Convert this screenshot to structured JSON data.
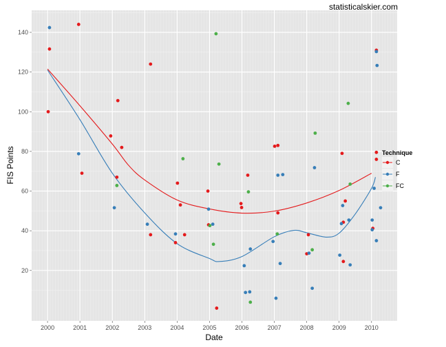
{
  "chart_data": {
    "type": "scatter",
    "title": "",
    "watermark": "statisticalskier.com",
    "xlabel": "Date",
    "ylabel": "FIS Points",
    "xlim": [
      1999.51,
      2010.79
    ],
    "ylim": [
      -5.4,
      151.1
    ],
    "xticks": [
      2000,
      2001,
      2002,
      2003,
      2004,
      2005,
      2006,
      2007,
      2008,
      2009,
      2010
    ],
    "xtick_labels": [
      "2000",
      "2001",
      "2002",
      "2003",
      "2004",
      "2005",
      "2006",
      "2007",
      "2008",
      "2009",
      "2010"
    ],
    "yticks": [
      20,
      40,
      60,
      80,
      100,
      120,
      140
    ],
    "ytick_labels": [
      "20",
      "40",
      "60",
      "80",
      "100",
      "120",
      "140"
    ],
    "grid": true,
    "legend": {
      "title": "Technique",
      "placement": "right"
    },
    "series": [
      {
        "name": "C",
        "color": "#E41A1C",
        "points": [
          [
            2000.02,
            100
          ],
          [
            2000.06,
            131.6
          ],
          [
            2000.96,
            144
          ],
          [
            2001.06,
            69
          ],
          [
            2001.95,
            87.8
          ],
          [
            2002.17,
            105.6
          ],
          [
            2002.14,
            67
          ],
          [
            2002.29,
            82
          ],
          [
            2003.18,
            124
          ],
          [
            2003.18,
            38
          ],
          [
            2003.95,
            34
          ],
          [
            2004.01,
            64
          ],
          [
            2004.1,
            53
          ],
          [
            2004.23,
            38
          ],
          [
            2004.95,
            60
          ],
          [
            2004.97,
            43
          ],
          [
            2005.22,
            1
          ],
          [
            2005.97,
            53.7
          ],
          [
            2005.99,
            51.7
          ],
          [
            2006.18,
            68
          ],
          [
            2007.01,
            82.6
          ],
          [
            2007.11,
            83
          ],
          [
            2007.11,
            49
          ],
          [
            2008.0,
            28.4
          ],
          [
            2008.05,
            38
          ],
          [
            2009.09,
            79
          ],
          [
            2009.13,
            44.3
          ],
          [
            2009.13,
            24.5
          ],
          [
            2009.19,
            55
          ],
          [
            2010.04,
            41.2
          ],
          [
            2010.15,
            131
          ],
          [
            2010.15,
            79.5
          ],
          [
            2010.15,
            76
          ]
        ],
        "smooth": [
          [
            2000,
            121.5
          ],
          [
            2001,
            103
          ],
          [
            2002,
            83.7
          ],
          [
            2002.5,
            73
          ],
          [
            2003,
            65.6
          ],
          [
            2004,
            55.5
          ],
          [
            2005,
            51
          ],
          [
            2006,
            48.9
          ],
          [
            2007,
            49.9
          ],
          [
            2008,
            54
          ],
          [
            2009,
            60.3
          ],
          [
            2010,
            69
          ]
        ]
      },
      {
        "name": "F",
        "color": "#377EB8",
        "points": [
          [
            2000.06,
            142.4
          ],
          [
            2000.96,
            78.8
          ],
          [
            2002.06,
            51.6
          ],
          [
            2003.08,
            43.3
          ],
          [
            2003.95,
            38.4
          ],
          [
            2004.97,
            50.9
          ],
          [
            2005.1,
            43.3
          ],
          [
            2006.07,
            22.4
          ],
          [
            2006.11,
            8.9
          ],
          [
            2006.24,
            9.2
          ],
          [
            2006.26,
            30.8
          ],
          [
            2006.96,
            34.6
          ],
          [
            2007.05,
            6
          ],
          [
            2007.11,
            68
          ],
          [
            2007.18,
            23.5
          ],
          [
            2007.26,
            68.3
          ],
          [
            2008.07,
            28.7
          ],
          [
            2008.17,
            11
          ],
          [
            2008.24,
            71.8
          ],
          [
            2009.02,
            27.7
          ],
          [
            2009.07,
            43.6
          ],
          [
            2009.11,
            52.7
          ],
          [
            2009.3,
            45.4
          ],
          [
            2009.34,
            22.8
          ],
          [
            2010.02,
            45.4
          ],
          [
            2010.02,
            40.5
          ],
          [
            2010.08,
            61.4
          ],
          [
            2010.15,
            130.3
          ],
          [
            2010.17,
            123.3
          ],
          [
            2010.15,
            35
          ],
          [
            2010.28,
            51.6
          ]
        ],
        "smooth": [
          [
            2000,
            121
          ],
          [
            2001,
            96
          ],
          [
            2002,
            69
          ],
          [
            2003,
            49
          ],
          [
            2004,
            33.5
          ],
          [
            2005,
            26
          ],
          [
            2005.3,
            24.5
          ],
          [
            2006,
            27
          ],
          [
            2007,
            37
          ],
          [
            2007.6,
            40.2
          ],
          [
            2008,
            39
          ],
          [
            2008.6,
            36.8
          ],
          [
            2009,
            38.8
          ],
          [
            2009.5,
            48.5
          ],
          [
            2010,
            61.4
          ],
          [
            2010.12,
            67
          ]
        ]
      },
      {
        "name": "FC",
        "color": "#4DAF4A",
        "points": [
          [
            2002.14,
            62.8
          ],
          [
            2004.18,
            76.3
          ],
          [
            2005.01,
            42.6
          ],
          [
            2005.12,
            33.2
          ],
          [
            2005.2,
            139.3
          ],
          [
            2005.29,
            73.6
          ],
          [
            2006.2,
            59.6
          ],
          [
            2006.26,
            4
          ],
          [
            2007.09,
            38.4
          ],
          [
            2008.17,
            30.4
          ],
          [
            2008.26,
            89.2
          ],
          [
            2009.28,
            104.2
          ],
          [
            2009.34,
            63.5
          ]
        ]
      }
    ]
  }
}
